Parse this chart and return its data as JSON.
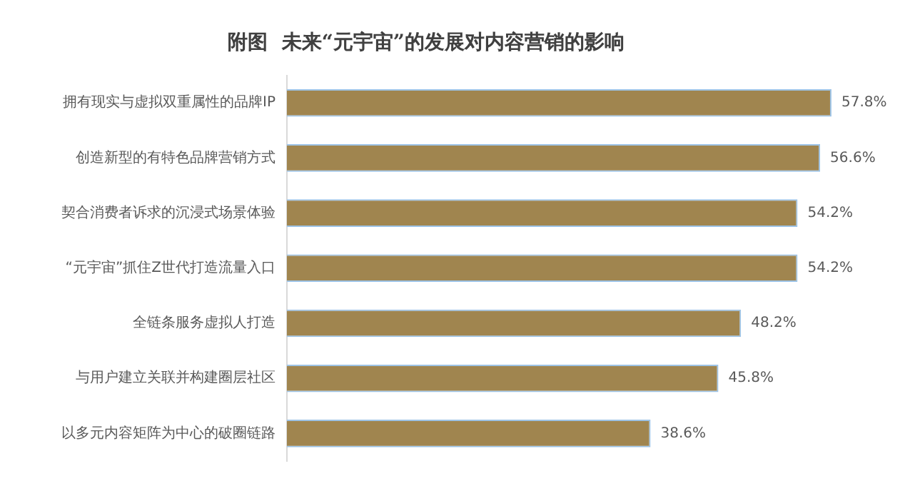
{
  "chart_data": {
    "type": "bar",
    "orientation": "horizontal",
    "title": "附图  未来“元宇宙”的发展对内容营销的影响",
    "categories": [
      "拥有现实与虚拟双重属性的品牌IP",
      "创造新型的有特色品牌营销方式",
      "契合消费者诉求的沉浸式场景体验",
      "“元宇宙”抓住Z世代打造流量入口",
      "全链条服务虚拟人打造",
      "与用户建立关联并构建圈层社区",
      "以多元内容矩阵为中心的破圈链路"
    ],
    "values": [
      57.8,
      56.6,
      54.2,
      54.2,
      48.2,
      45.8,
      38.6
    ],
    "value_labels": [
      "57.8%",
      "56.6%",
      "54.2%",
      "54.2%",
      "48.2%",
      "45.8%",
      "38.6%"
    ],
    "color": "#a0854f",
    "tick_labels": "y",
    "grid": false,
    "legend": false
  }
}
